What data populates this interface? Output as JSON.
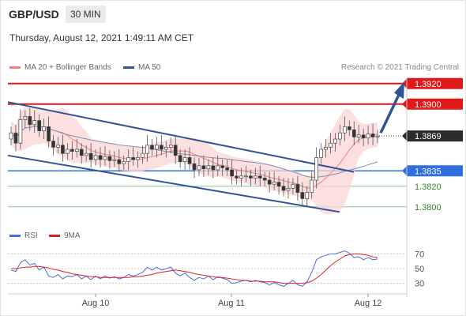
{
  "header": {
    "symbol": "GBP/USD",
    "timeframe": "30 MIN",
    "timestamp": "Thursday, August 12, 2021 1:49:11 AM CET"
  },
  "legend": {
    "ma20_label": "MA 20 + Bollinger Bands",
    "ma20_color": "#f08080",
    "ma50_label": "MA 50",
    "ma50_color": "#2f5597",
    "copyright": "Research © 2021 Trading Central"
  },
  "rsi_legend": {
    "rsi_label": "RSI",
    "rsi_color": "#4a6fd8",
    "ma9_label": "9MA",
    "ma9_color": "#e02020"
  },
  "chart_data": {
    "type": "candlestick",
    "instrument": "GBP/USD",
    "interval": "30 MIN",
    "ylim": [
      1.3786,
      1.3926
    ],
    "x_ticks": [
      "Aug 10",
      "Aug 11",
      "Aug 12"
    ],
    "levels": [
      {
        "label": "1.3920",
        "value": 1.392,
        "role": "resistance",
        "color": "#e0191b"
      },
      {
        "label": "1.3900",
        "value": 1.39,
        "role": "resistance",
        "color": "#e0191b"
      },
      {
        "label": "1.3869",
        "value": 1.3869,
        "role": "last price",
        "color": "#2b2b2b"
      },
      {
        "label": "1.3835",
        "value": 1.3835,
        "role": "pivot",
        "color": "#2f6fe0"
      },
      {
        "label": "1.3820",
        "value": 1.382,
        "role": "support",
        "color": "#2e8b2e"
      },
      {
        "label": "1.3800",
        "value": 1.38,
        "role": "support",
        "color": "#2e8b2e"
      }
    ],
    "close": [
      1.3872,
      1.3862,
      1.3885,
      1.3888,
      1.388,
      1.3884,
      1.3874,
      1.3878,
      1.3864,
      1.3858,
      1.386,
      1.3852,
      1.3856,
      1.3854,
      1.3856,
      1.385,
      1.3852,
      1.3846,
      1.385,
      1.3846,
      1.3849,
      1.3845,
      1.3846,
      1.3842,
      1.3844,
      1.3848,
      1.3846,
      1.3848,
      1.3852,
      1.386,
      1.3856,
      1.386,
      1.3856,
      1.3858,
      1.386,
      1.385,
      1.3844,
      1.3848,
      1.3842,
      1.3836,
      1.384,
      1.3837,
      1.384,
      1.3836,
      1.384,
      1.3838,
      1.3836,
      1.383,
      1.3828,
      1.383,
      1.383,
      1.3828,
      1.383,
      1.3828,
      1.3826,
      1.3822,
      1.3824,
      1.382,
      1.3816,
      1.3818,
      1.3822,
      1.3814,
      1.3808,
      1.3814,
      1.3826,
      1.3848,
      1.3856,
      1.3858,
      1.3862,
      1.3866,
      1.3872,
      1.3878,
      1.3875,
      1.3868,
      1.387,
      1.3867,
      1.3871,
      1.3868,
      1.3869
    ],
    "indicators": {
      "ma20_bollinger": true,
      "ma50": true,
      "trend_channel": "descending",
      "projection_arrow": "up toward 1.3920"
    },
    "rsi": {
      "levels": [
        70,
        50,
        30
      ],
      "values": [
        48,
        46,
        58,
        62,
        55,
        57,
        48,
        52,
        40,
        38,
        42,
        36,
        40,
        39,
        42,
        36,
        40,
        35,
        40,
        36,
        40,
        37,
        39,
        36,
        38,
        42,
        40,
        42,
        45,
        52,
        48,
        52,
        48,
        50,
        52,
        44,
        40,
        44,
        38,
        34,
        38,
        36,
        40,
        35,
        39,
        37,
        35,
        30,
        31,
        33,
        34,
        32,
        34,
        32,
        31,
        28,
        31,
        28,
        26,
        30,
        34,
        28,
        26,
        32,
        45,
        62,
        66,
        68,
        70,
        70,
        72,
        74,
        71,
        65,
        66,
        62,
        65,
        62,
        63
      ],
      "ma9": [
        50,
        50,
        51,
        52,
        52,
        53,
        53,
        52,
        51,
        49,
        48,
        46,
        45,
        43,
        42,
        41,
        40,
        39,
        39,
        38,
        38,
        38,
        38,
        38,
        38,
        38,
        39,
        39,
        40,
        41,
        42,
        44,
        45,
        46,
        47,
        48,
        47,
        46,
        45,
        43,
        42,
        41,
        40,
        39,
        38,
        38,
        37,
        36,
        35,
        34,
        34,
        33,
        33,
        33,
        32,
        32,
        32,
        31,
        30,
        30,
        30,
        30,
        30,
        31,
        33,
        37,
        42,
        48,
        54,
        59,
        63,
        67,
        69,
        70,
        70,
        69,
        68,
        66,
        65
      ]
    }
  }
}
